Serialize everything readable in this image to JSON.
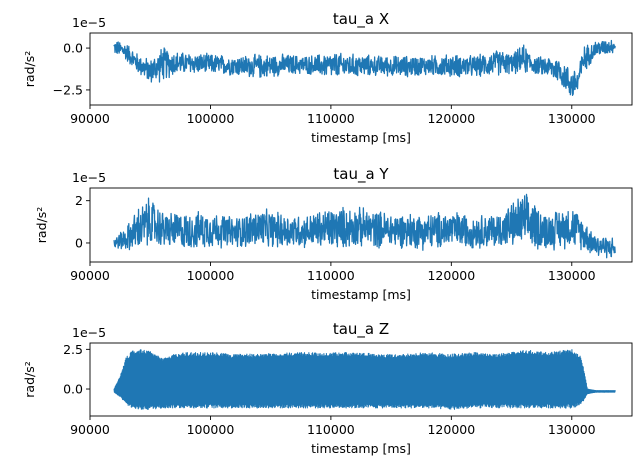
{
  "chart_data": [
    {
      "type": "line",
      "title": "tau_a X",
      "xlabel": "timestamp [ms]",
      "ylabel": "rad/s²",
      "offset_text": "1e−5",
      "xlim": [
        90000,
        135000
      ],
      "ylim": [
        -3.4,
        0.9
      ],
      "xticks": [
        90000,
        100000,
        110000,
        120000,
        130000
      ],
      "yticks": [
        0.0,
        -2.5
      ],
      "ytick_labels": [
        "0.0",
        "−2.5"
      ],
      "grid": false,
      "color": "#1f77b4",
      "series": [
        {
          "x_range": [
            92000,
            133600
          ],
          "envelope_x": [
            92000,
            93000,
            94000,
            95000,
            96000,
            97000,
            98000,
            100000,
            102000,
            104000,
            106000,
            108000,
            110000,
            112000,
            114000,
            116000,
            118000,
            120000,
            122000,
            124000,
            125000,
            126000,
            127000,
            128000,
            129000,
            130000,
            130500,
            131000,
            132000,
            133600
          ],
          "envelope_low": [
            -0.4,
            -0.8,
            -1.6,
            -2.2,
            -2.1,
            -1.7,
            -1.6,
            -1.6,
            -1.7,
            -1.9,
            -1.7,
            -1.6,
            -1.9,
            -1.8,
            -1.7,
            -1.8,
            -1.7,
            -1.8,
            -1.8,
            -1.7,
            -1.6,
            -1.6,
            -1.6,
            -1.8,
            -2.2,
            -3.2,
            -3.0,
            -1.5,
            -0.6,
            -0.3
          ],
          "envelope_high": [
            0.5,
            0.4,
            -0.3,
            -0.6,
            0.2,
            -0.1,
            -0.2,
            -0.3,
            -0.4,
            -0.3,
            -0.3,
            -0.4,
            -0.2,
            -0.3,
            -0.4,
            -0.4,
            -0.4,
            -0.3,
            -0.4,
            0.0,
            -0.3,
            0.3,
            -0.5,
            -0.4,
            -0.5,
            -1.2,
            -1.0,
            0.2,
            0.5,
            0.6
          ]
        }
      ]
    },
    {
      "type": "line",
      "title": "tau_a Y",
      "xlabel": "timestamp [ms]",
      "ylabel": "rad/s²",
      "offset_text": "1e−5",
      "xlim": [
        90000,
        135000
      ],
      "ylim": [
        -0.9,
        2.6
      ],
      "xticks": [
        90000,
        100000,
        110000,
        120000,
        130000
      ],
      "yticks": [
        2,
        0
      ],
      "ytick_labels": [
        "2",
        "0"
      ],
      "grid": false,
      "color": "#1f77b4",
      "series": [
        {
          "x_range": [
            92000,
            133600
          ],
          "envelope_x": [
            92000,
            93000,
            94000,
            95000,
            96000,
            98000,
            100000,
            102000,
            104000,
            106000,
            108000,
            110000,
            112000,
            114000,
            116000,
            118000,
            120000,
            122000,
            124000,
            126000,
            128000,
            130000,
            131000,
            132000,
            133600
          ],
          "envelope_low": [
            -0.3,
            -0.4,
            -0.5,
            -0.3,
            -0.3,
            -0.4,
            -0.3,
            -0.3,
            -0.3,
            -0.3,
            -0.3,
            -0.4,
            -0.3,
            -0.3,
            -0.3,
            -0.4,
            -0.3,
            -0.3,
            -0.3,
            -0.4,
            -0.4,
            -0.3,
            -0.4,
            -0.7,
            -0.8
          ],
          "envelope_high": [
            0.3,
            0.8,
            1.8,
            2.3,
            1.6,
            1.5,
            1.6,
            1.3,
            1.7,
            1.5,
            1.4,
            1.8,
            1.8,
            1.6,
            1.5,
            1.5,
            1.6,
            1.4,
            1.5,
            2.5,
            1.5,
            1.9,
            1.2,
            0.5,
            0.3
          ]
        }
      ]
    },
    {
      "type": "line",
      "title": "tau_a Z",
      "xlabel": "timestamp [ms]",
      "ylabel": "rad/s²",
      "offset_text": "1e−5",
      "xlim": [
        90000,
        135000
      ],
      "ylim": [
        -1.7,
        2.9
      ],
      "xticks": [
        90000,
        100000,
        110000,
        120000,
        130000
      ],
      "yticks": [
        2.5,
        0.0
      ],
      "ytick_labels": [
        "2.5",
        "0.0"
      ],
      "grid": false,
      "color": "#1f77b4",
      "series": [
        {
          "x_range": [
            92000,
            133600
          ],
          "envelope_x": [
            92000,
            92500,
            93000,
            93500,
            94000,
            95000,
            96000,
            97000,
            98000,
            100000,
            102000,
            104000,
            106000,
            108000,
            110000,
            112000,
            114000,
            116000,
            118000,
            120000,
            122000,
            124000,
            126000,
            128000,
            130000,
            130800,
            131300,
            132000,
            133600
          ],
          "envelope_low": [
            -0.2,
            -0.5,
            -1.0,
            -1.2,
            -1.3,
            -1.3,
            -1.2,
            -1.2,
            -1.2,
            -1.2,
            -1.2,
            -1.2,
            -1.2,
            -1.2,
            -1.2,
            -1.2,
            -1.2,
            -1.2,
            -1.2,
            -1.3,
            -1.2,
            -1.2,
            -1.2,
            -1.2,
            -1.2,
            -1.0,
            -0.3,
            -0.2,
            -0.2
          ],
          "envelope_high": [
            0.0,
            0.8,
            2.0,
            2.4,
            2.5,
            2.4,
            1.9,
            2.2,
            2.3,
            2.3,
            2.2,
            2.2,
            2.3,
            2.3,
            2.3,
            2.3,
            2.2,
            2.2,
            2.3,
            2.2,
            2.3,
            2.2,
            2.5,
            2.3,
            2.5,
            2.0,
            0.0,
            -0.1,
            -0.1
          ]
        }
      ]
    }
  ]
}
